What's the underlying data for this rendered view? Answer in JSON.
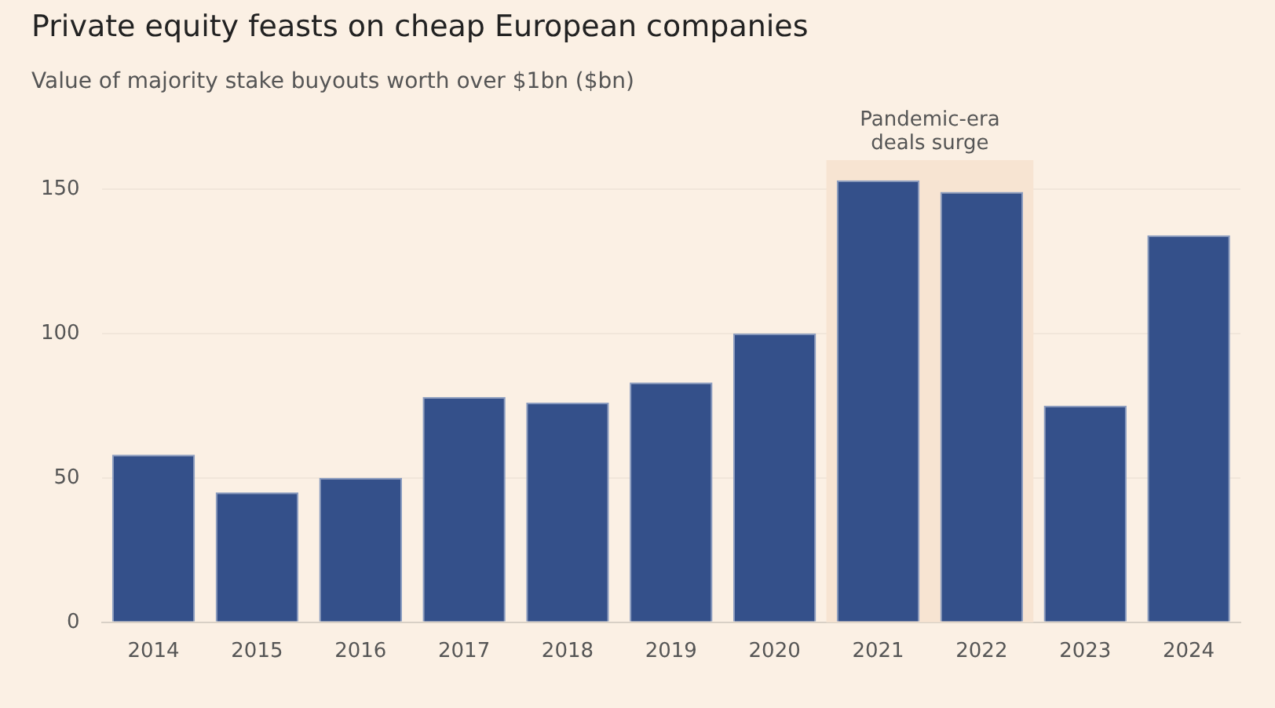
{
  "chart_data": {
    "type": "bar",
    "title": "Private equity feasts on cheap European companies",
    "subtitle": "Value of majority stake buyouts worth over $1bn ($bn)",
    "categories": [
      "2014",
      "2015",
      "2016",
      "2017",
      "2018",
      "2019",
      "2020",
      "2021",
      "2022",
      "2023",
      "2024"
    ],
    "values": [
      58,
      45,
      50,
      78,
      76,
      83,
      100,
      153,
      149,
      75,
      134
    ],
    "color": "#34508a",
    "ylim": [
      0,
      160
    ],
    "yticks": [
      0,
      50,
      100,
      150
    ],
    "grid": "y",
    "legend": false,
    "bands": [
      {
        "axis": "x",
        "from": "2021",
        "to": "2022",
        "label": "Pandemic-era\ndeals surge",
        "color": "#f7e4d2"
      }
    ]
  }
}
